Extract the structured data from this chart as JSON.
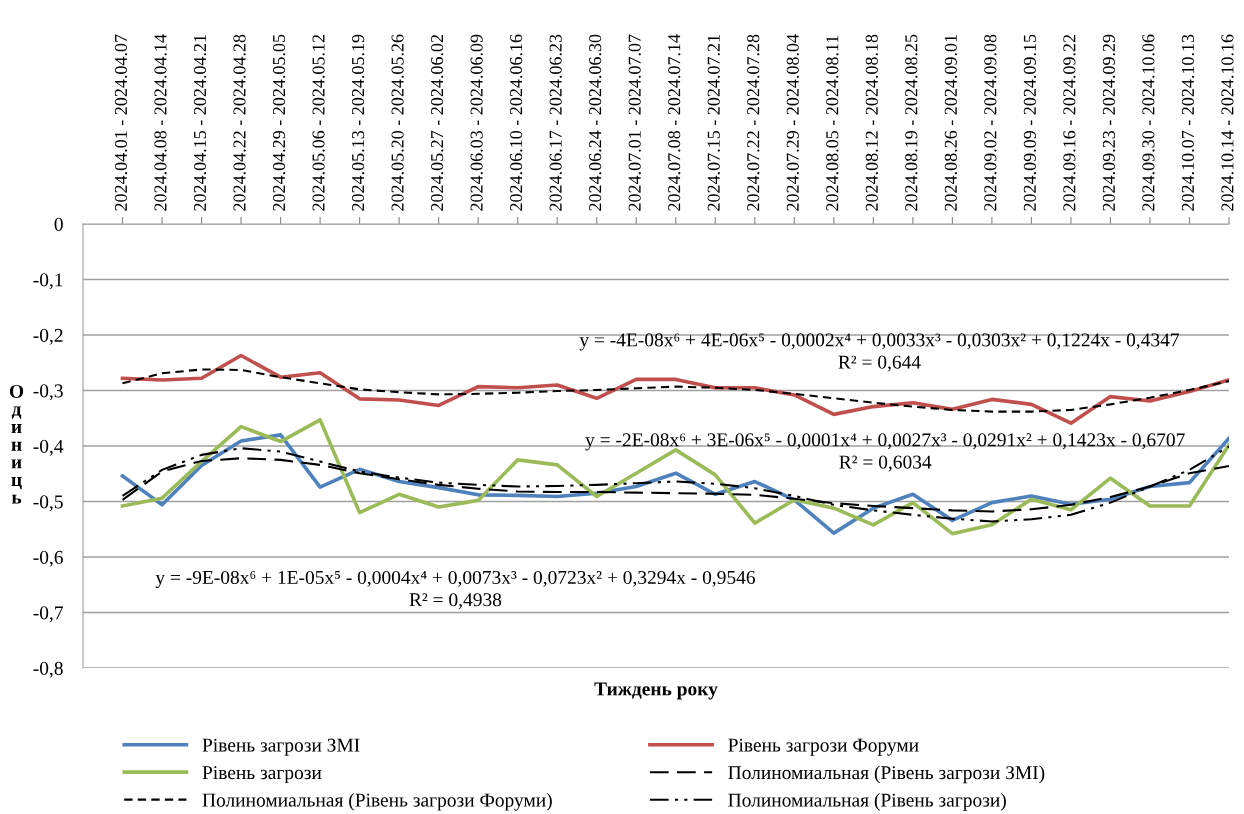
{
  "chart_data": {
    "type": "line",
    "xlabel": "Тиждень року",
    "ylabel": "Одиниць",
    "categories": [
      "2024.04.01 - 2024.04.07",
      "2024.04.08 - 2024.04.14",
      "2024.04.15 - 2024.04.21",
      "2024.04.22 - 2024.04.28",
      "2024.04.29 - 2024.05.05",
      "2024.05.06 - 2024.05.12",
      "2024.05.13 - 2024.05.19",
      "2024.05.20 - 2024.05.26",
      "2024.05.27 - 2024.06.02",
      "2024.06.03 - 2024.06.09",
      "2024.06.10 - 2024.06.16",
      "2024.06.17 - 2024.06.23",
      "2024.06.24 - 2024.06.30",
      "2024.07.01 - 2024.07.07",
      "2024.07.08 - 2024.07.14",
      "2024.07.15 - 2024.07.21",
      "2024.07.22 - 2024.07.28",
      "2024.07.29 - 2024.08.04",
      "2024.08.05 - 2024.08.11",
      "2024.08.12 - 2024.08.18",
      "2024.08.19 - 2024.08.25",
      "2024.08.26 - 2024.09.01",
      "2024.09.02 - 2024.09.08",
      "2024.09.09 - 2024.09.15",
      "2024.09.16 - 2024.09.22",
      "2024.09.23 - 2024.09.29",
      "2024.09.30 - 2024.10.06",
      "2024.10.07 - 2024.10.13",
      "2024.10.14 - 2024.10.16"
    ],
    "series": [
      {
        "name": "Рівень загрози ЗМІ",
        "color": "#4f81bd",
        "line_style": "solid",
        "values": [
          -0.454,
          -0.506,
          -0.435,
          -0.391,
          -0.38,
          -0.474,
          -0.442,
          -0.464,
          -0.475,
          -0.488,
          -0.489,
          -0.491,
          -0.485,
          -0.473,
          -0.449,
          -0.487,
          -0.464,
          -0.497,
          -0.557,
          -0.512,
          -0.487,
          -0.534,
          -0.502,
          -0.49,
          -0.505,
          -0.496,
          -0.473,
          -0.466,
          -0.386
        ]
      },
      {
        "name": "Рівень загрози Форуми",
        "color": "#c0504d",
        "line_style": "solid",
        "values": [
          -0.278,
          -0.281,
          -0.278,
          -0.237,
          -0.276,
          -0.268,
          -0.315,
          -0.317,
          -0.327,
          -0.293,
          -0.295,
          -0.29,
          -0.314,
          -0.28,
          -0.28,
          -0.295,
          -0.295,
          -0.308,
          -0.343,
          -0.329,
          -0.322,
          -0.334,
          -0.316,
          -0.325,
          -0.359,
          -0.311,
          -0.319,
          -0.302,
          -0.281
        ]
      },
      {
        "name": "Рівень загрози",
        "color": "#9bbb59",
        "line_style": "solid",
        "values": [
          -0.508,
          -0.494,
          -0.428,
          -0.365,
          -0.392,
          -0.353,
          -0.52,
          -0.487,
          -0.51,
          -0.498,
          -0.425,
          -0.434,
          -0.491,
          -0.449,
          -0.407,
          -0.452,
          -0.539,
          -0.497,
          -0.512,
          -0.542,
          -0.502,
          -0.558,
          -0.542,
          -0.496,
          -0.515,
          -0.458,
          -0.508,
          -0.508,
          -0.398
        ]
      },
      {
        "name": "Полиномиальная (Рівень загрози ЗМІ)",
        "color": "#000000",
        "line_style": "longdash",
        "values": [
          -0.497,
          -0.446,
          -0.427,
          -0.422,
          -0.425,
          -0.434,
          -0.449,
          -0.46,
          -0.47,
          -0.477,
          -0.482,
          -0.483,
          -0.483,
          -0.484,
          -0.485,
          -0.486,
          -0.488,
          -0.495,
          -0.503,
          -0.508,
          -0.512,
          -0.516,
          -0.518,
          -0.514,
          -0.506,
          -0.492,
          -0.473,
          -0.449,
          -0.436
        ]
      },
      {
        "name": "Полиномиальная (Рівень загрози Форуми)",
        "color": "#000000",
        "line_style": "dashed",
        "values": [
          -0.287,
          -0.269,
          -0.262,
          -0.263,
          -0.276,
          -0.287,
          -0.298,
          -0.303,
          -0.307,
          -0.306,
          -0.304,
          -0.301,
          -0.299,
          -0.296,
          -0.293,
          -0.295,
          -0.299,
          -0.306,
          -0.314,
          -0.322,
          -0.329,
          -0.335,
          -0.338,
          -0.338,
          -0.335,
          -0.325,
          -0.313,
          -0.299,
          -0.283
        ]
      },
      {
        "name": "Полиномиальная (Рівень загрози)",
        "color": "#000000",
        "line_style": "dashdot",
        "values": [
          -0.49,
          -0.443,
          -0.416,
          -0.404,
          -0.41,
          -0.428,
          -0.446,
          -0.457,
          -0.466,
          -0.47,
          -0.473,
          -0.472,
          -0.47,
          -0.467,
          -0.464,
          -0.468,
          -0.476,
          -0.49,
          -0.506,
          -0.516,
          -0.524,
          -0.531,
          -0.536,
          -0.532,
          -0.524,
          -0.502,
          -0.473,
          -0.443,
          -0.401
        ]
      }
    ],
    "ylim": [
      -0.8,
      0
    ],
    "yticks": [
      {
        "value": 0,
        "label": "0"
      },
      {
        "value": -0.1,
        "label": "-0,1"
      },
      {
        "value": -0.2,
        "label": "-0,2"
      },
      {
        "value": -0.3,
        "label": "-0,3"
      },
      {
        "value": -0.4,
        "label": "-0,4"
      },
      {
        "value": -0.5,
        "label": "-0,5"
      },
      {
        "value": -0.6,
        "label": "-0,6"
      },
      {
        "value": -0.7,
        "label": "-0,7"
      },
      {
        "value": -0.8,
        "label": "-0,8"
      }
    ],
    "grid": "y",
    "legend": "bottom",
    "marker": "none",
    "annotations": [
      "y = -4E-08x⁶ + 4E-06x⁵ - 0,0002x⁴ + 0,0033x³ - 0,0303x² + 0,1224x - 0,4347",
      "R² = 0,644",
      "y = -2E-08x⁶ + 3E-06x⁵ - 0,0001x⁴ + 0,0027x³ - 0,0291x² + 0,1423x - 0,6707",
      "R² = 0,6034",
      "y = -9E-08x⁶ + 1E-05x⁵ - 0,0004x⁴ + 0,0073x³ - 0,0723x² + 0,3294x - 0,9546",
      "R² = 0,4938"
    ]
  }
}
